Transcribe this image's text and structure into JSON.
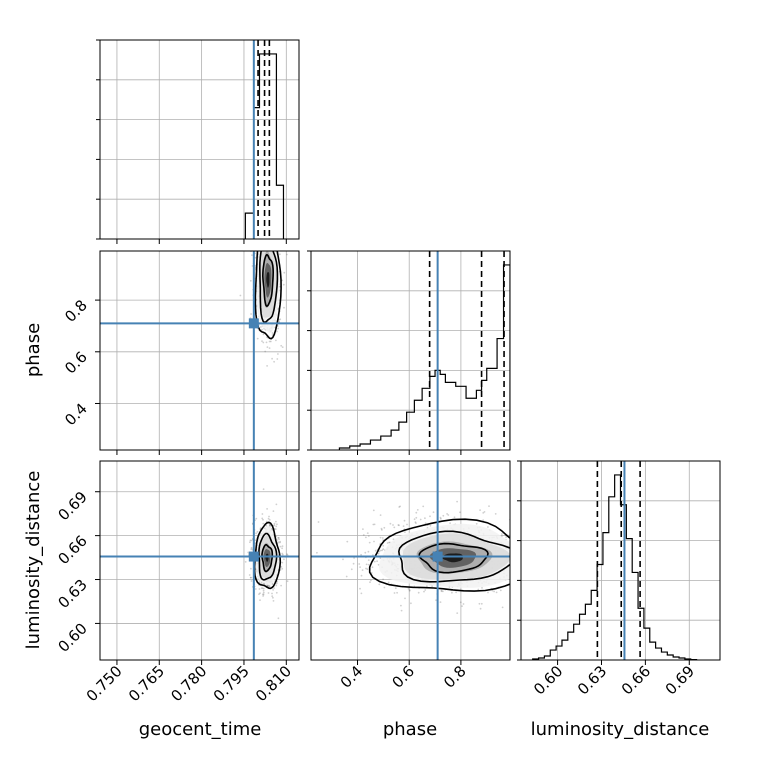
{
  "chart_data": {
    "type": "corner",
    "parameters": [
      "geocent_time",
      "phase",
      "luminosity_distance"
    ],
    "truths": {
      "geocent_time": 0.7985,
      "phase": 0.71,
      "luminosity_distance": 0.6457
    },
    "colors": {
      "truth": "#4682b4",
      "hist": "#000000",
      "quantile": "#000000",
      "scatter": "#777777"
    },
    "grid": true,
    "quantiles": [
      0.16,
      0.5,
      0.84
    ],
    "axes": {
      "geocent_time": {
        "range": [
          0.744,
          0.8145
        ],
        "ticks": [
          "0.750",
          "0.765",
          "0.780",
          "0.795",
          "0.810"
        ],
        "tick_values": [
          0.75,
          0.765,
          0.78,
          0.795,
          0.81
        ]
      },
      "phase": {
        "range": [
          0.22,
          0.99
        ],
        "ticks": [
          "0.4",
          "0.6",
          "0.8"
        ],
        "tick_values": [
          0.4,
          0.6,
          0.8
        ]
      },
      "luminosity_distance": {
        "range": [
          0.575,
          0.711
        ],
        "ticks": [
          "0.60",
          "0.63",
          "0.66",
          "0.69"
        ],
        "tick_values": [
          0.6,
          0.63,
          0.66,
          0.69
        ]
      }
    },
    "hist_geocent_time": {
      "bin_edges": [
        0.7955,
        0.7985,
        0.8005,
        0.8025,
        0.8045,
        0.8065,
        0.809
      ],
      "counts": [
        0.13,
        0.66,
        0.93,
        0.93,
        0.93,
        0.27
      ],
      "quantile_lines": [
        0.8,
        0.8023,
        0.804
      ]
    },
    "hist_phase": {
      "bin_edges": [
        0.33,
        0.37,
        0.41,
        0.45,
        0.49,
        0.53,
        0.56,
        0.59,
        0.62,
        0.65,
        0.68,
        0.7,
        0.72,
        0.74,
        0.78,
        0.82,
        0.86,
        0.88,
        0.9,
        0.94,
        0.965,
        0.99
      ],
      "counts": [
        0.01,
        0.02,
        0.03,
        0.05,
        0.07,
        0.1,
        0.14,
        0.19,
        0.25,
        0.31,
        0.37,
        0.4,
        0.38,
        0.34,
        0.32,
        0.26,
        0.3,
        0.35,
        0.41,
        0.56,
        0.93
      ],
      "quantile_lines": [
        0.679,
        0.88,
        0.967
      ]
    },
    "hist_luminosity_distance": {
      "bin_edges": [
        0.583,
        0.587,
        0.591,
        0.595,
        0.599,
        0.603,
        0.607,
        0.611,
        0.615,
        0.619,
        0.623,
        0.627,
        0.631,
        0.635,
        0.639,
        0.643,
        0.647,
        0.651,
        0.655,
        0.659,
        0.663,
        0.667,
        0.671,
        0.675,
        0.679,
        0.683,
        0.687,
        0.691,
        0.695
      ],
      "counts": [
        0.005,
        0.01,
        0.02,
        0.05,
        0.07,
        0.1,
        0.14,
        0.18,
        0.23,
        0.28,
        0.35,
        0.48,
        0.64,
        0.82,
        0.93,
        0.78,
        0.61,
        0.44,
        0.26,
        0.16,
        0.09,
        0.06,
        0.04,
        0.025,
        0.015,
        0.01,
        0.005,
        0.002
      ],
      "quantile_lines": [
        0.6272,
        0.6435,
        0.6564
      ]
    },
    "contour_geocent_phase": {
      "center": [
        0.8035,
        0.88
      ],
      "spread": [
        0.0022,
        0.12
      ]
    },
    "contour_geocent_distance": {
      "center": [
        0.8032,
        0.645
      ],
      "spread": [
        0.0022,
        0.011
      ]
    },
    "contour_phase_distance": {
      "center": [
        0.77,
        0.645
      ],
      "spread": [
        0.16,
        0.012
      ]
    }
  }
}
